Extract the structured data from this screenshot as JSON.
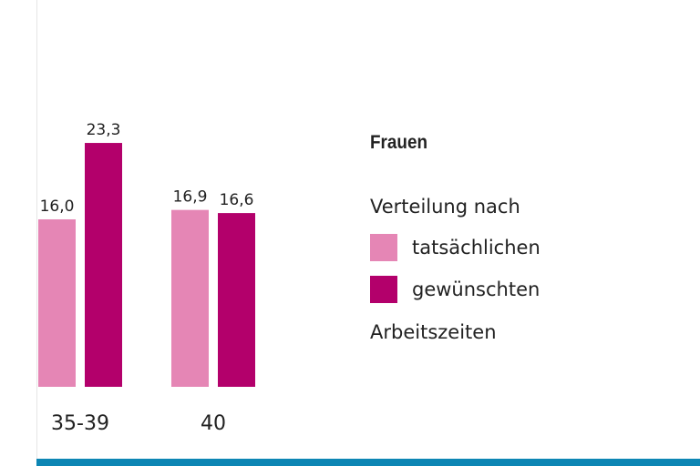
{
  "colors": {
    "actual": "#e586b5",
    "desired": "#b3006b",
    "baseline": "#0d86b4",
    "left_axis": "#e6e6e6"
  },
  "legend": {
    "heading": "Frauen",
    "intro": "Verteilung nach",
    "items": [
      {
        "label": "tatsächlichen",
        "color": "#e586b5"
      },
      {
        "label": "gewünschten",
        "color": "#b3006b"
      }
    ],
    "outro": "Arbeitszeiten"
  },
  "chart_data": {
    "type": "bar",
    "categories": [
      "35-39",
      "40"
    ],
    "series": [
      {
        "name": "tatsächlichen",
        "values": [
          16.0,
          16.9
        ],
        "labels": [
          "16,0",
          "16,9"
        ],
        "color": "#e586b5"
      },
      {
        "name": "gewünschten",
        "values": [
          23.3,
          16.6
        ],
        "labels": [
          "23,3",
          "16,6"
        ],
        "color": "#b3006b"
      }
    ],
    "title": "",
    "xlabel": "",
    "ylabel": "",
    "ylim": [
      0,
      25
    ],
    "grid": false,
    "legend_position": "right"
  }
}
